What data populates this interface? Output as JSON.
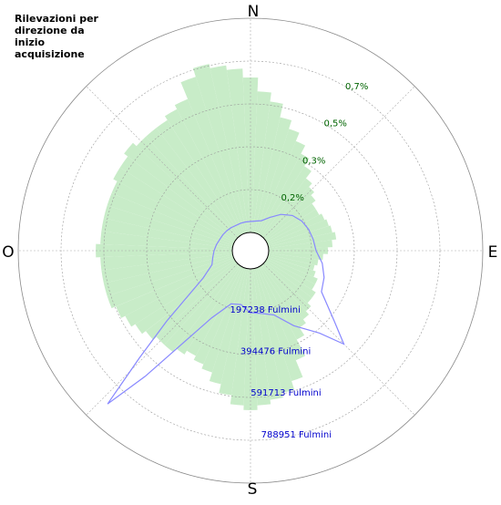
{
  "chart_data": {
    "type": "polar",
    "title": "Rilevazioni per direzione da inizio acquisizione",
    "directions": [
      "N",
      "E",
      "S",
      "O"
    ],
    "rlim": [
      0,
      0.875
    ],
    "rticks": [
      {
        "value": 0.175,
        "label": "0,2%"
      },
      {
        "value": 0.35,
        "label": "0,3%"
      },
      {
        "value": 0.525,
        "label": "0,5%"
      },
      {
        "value": 0.7,
        "label": "0,7%"
      }
    ],
    "rtick_color": "#006400",
    "r2lim": [
      0,
      986189
    ],
    "r2ticks": [
      {
        "value": 197238,
        "label": "197238 Fulmini"
      },
      {
        "value": 394476,
        "label": "394476 Fulmini"
      },
      {
        "value": 591713,
        "label": "591713 Fulmini"
      },
      {
        "value": 788951,
        "label": "788951 Fulmini"
      }
    ],
    "r2tick_color": "#0000cc",
    "series": [
      {
        "kind": "bar",
        "color": "#c8ecc8",
        "theta": [
          0,
          5,
          10,
          15,
          20,
          25,
          30,
          35,
          40,
          45,
          50,
          55,
          60,
          65,
          70,
          75,
          80,
          85,
          90,
          95,
          100,
          105,
          110,
          115,
          120,
          125,
          130,
          135,
          140,
          145,
          150,
          155,
          160,
          165,
          170,
          175,
          180,
          185,
          190,
          195,
          200,
          205,
          210,
          215,
          220,
          225,
          230,
          235,
          240,
          245,
          250,
          255,
          260,
          265,
          270,
          275,
          280,
          285,
          290,
          295,
          300,
          305,
          310,
          315,
          320,
          325,
          330,
          335,
          340,
          345,
          350,
          355
        ],
        "values": [
          0.633,
          0.577,
          0.54,
          0.484,
          0.447,
          0.41,
          0.372,
          0.335,
          0.298,
          0.279,
          0.261,
          0.242,
          0.242,
          0.253,
          0.261,
          0.268,
          0.279,
          0.261,
          0.242,
          0.223,
          0.205,
          0.194,
          0.205,
          0.223,
          0.223,
          0.242,
          0.242,
          0.261,
          0.279,
          0.298,
          0.335,
          0.41,
          0.484,
          0.521,
          0.54,
          0.558,
          0.577,
          0.558,
          0.521,
          0.484,
          0.447,
          0.428,
          0.41,
          0.428,
          0.447,
          0.447,
          0.465,
          0.484,
          0.503,
          0.521,
          0.54,
          0.54,
          0.54,
          0.54,
          0.558,
          0.54,
          0.54,
          0.54,
          0.54,
          0.54,
          0.558,
          0.558,
          0.577,
          0.558,
          0.558,
          0.558,
          0.577,
          0.596,
          0.67,
          0.707,
          0.689,
          0.67
        ]
      },
      {
        "kind": "line",
        "color": "#8888ff",
        "axis": "y2",
        "theta": [
          0,
          10,
          20,
          30,
          40,
          50,
          60,
          70,
          80,
          90,
          100,
          110,
          120,
          130,
          135,
          140,
          150,
          160,
          170,
          180,
          190,
          200,
          210,
          220,
          223,
          226,
          230,
          240,
          250,
          260,
          270,
          280,
          290,
          300,
          310,
          320,
          330,
          340,
          350
        ],
        "values": [
          50359,
          54556,
          62949,
          92325,
          134291,
          167864,
          188847,
          201437,
          209830,
          218223,
          251796,
          276976,
          293762,
          419660,
          524575,
          411267,
          314745,
          230813,
          209830,
          201437,
          167864,
          176257,
          272779,
          671456,
          881286,
          629490,
          419660,
          167864,
          104915,
          92325,
          83932,
          75539,
          67146,
          62949,
          58752,
          54556,
          50359,
          50359,
          50359
        ]
      }
    ]
  }
}
